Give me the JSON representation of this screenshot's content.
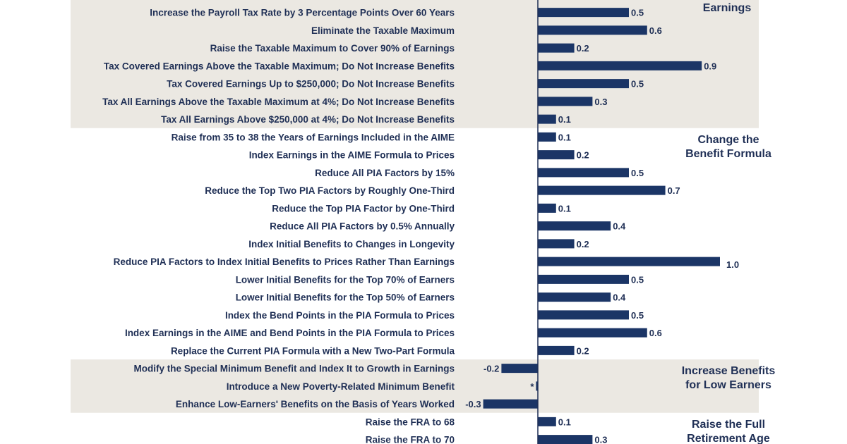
{
  "chart_data": {
    "type": "bar",
    "orientation": "horizontal",
    "groups": [
      {
        "name": [
          "Earnings"
        ],
        "shaded": true,
        "items": [
          {
            "label": "Increase the Payroll Tax Rate by 3 Percentage Points Over 60 Years",
            "value": 0.5,
            "display": "0.5"
          },
          {
            "label": "Eliminate the Taxable Maximum",
            "value": 0.6,
            "display": "0.6"
          },
          {
            "label": "Raise the Taxable Maximum to Cover 90% of Earnings",
            "value": 0.2,
            "display": "0.2"
          },
          {
            "label": "Tax Covered Earnings Above the Taxable Maximum; Do Not Increase Benefits",
            "value": 0.9,
            "display": "0.9"
          },
          {
            "label": "Tax Covered Earnings Up to $250,000; Do Not Increase Benefits",
            "value": 0.5,
            "display": "0.5"
          },
          {
            "label": "Tax All Earnings Above the Taxable Maximum at 4%; Do Not Increase Benefits",
            "value": 0.3,
            "display": "0.3"
          },
          {
            "label": "Tax All Earnings Above $250,000 at 4%; Do Not Increase Benefits",
            "value": 0.1,
            "display": "0.1"
          }
        ]
      },
      {
        "name": [
          "Change the",
          "Benefit Formula"
        ],
        "shaded": false,
        "items": [
          {
            "label": "Raise from 35 to 38 the Years of Earnings Included in the AIME",
            "value": 0.1,
            "display": "0.1"
          },
          {
            "label": "Index Earnings in the AIME Formula to Prices",
            "value": 0.2,
            "display": "0.2"
          },
          {
            "label": "Reduce All PIA Factors by 15%",
            "value": 0.5,
            "display": "0.5"
          },
          {
            "label": "Reduce the Top Two PIA Factors by Roughly One-Third",
            "value": 0.7,
            "display": "0.7"
          },
          {
            "label": "Reduce the Top PIA Factor by One-Third",
            "value": 0.1,
            "display": "0.1"
          },
          {
            "label": "Reduce All PIA Factors by 0.5% Annually",
            "value": 0.4,
            "display": "0.4"
          },
          {
            "label": "Index Initial Benefits to Changes in Longevity",
            "value": 0.2,
            "display": "0.2"
          },
          {
            "label": "Reduce PIA Factors to Index Initial Benefits to Prices Rather Than Earnings",
            "value": 1.0,
            "display": "1.0"
          },
          {
            "label": "Lower Initial Benefits for the Top 70% of Earners",
            "value": 0.5,
            "display": "0.5"
          },
          {
            "label": "Lower Initial Benefits for the Top 50% of Earners",
            "value": 0.4,
            "display": "0.4"
          },
          {
            "label": "Index the Bend Points in the PIA Formula to Prices",
            "value": 0.5,
            "display": "0.5"
          },
          {
            "label": "Index Earnings in the AIME and Bend Points in the PIA Formula to Prices",
            "value": 0.6,
            "display": "0.6"
          },
          {
            "label": "Replace the Current PIA Formula with a New Two-Part Formula",
            "value": 0.2,
            "display": "0.2"
          }
        ]
      },
      {
        "name": [
          "Increase Benefits",
          "for Low Earners"
        ],
        "shaded": true,
        "items": [
          {
            "label": "Modify the Special Minimum Benefit and Index It to Growth in Earnings",
            "value": -0.2,
            "display": "-0.2"
          },
          {
            "label": "Introduce a New Poverty-Related Minimum Benefit",
            "value": -0.01,
            "display": "*"
          },
          {
            "label": "Enhance Low-Earners' Benefits on the Basis of Years Worked",
            "value": -0.3,
            "display": "-0.3"
          }
        ]
      },
      {
        "name": [
          "Raise the Full",
          "Retirement Age"
        ],
        "shaded": false,
        "items": [
          {
            "label": "Raise the FRA to 68",
            "value": 0.1,
            "display": "0.1"
          },
          {
            "label": "Raise the FRA to 70",
            "value": 0.3,
            "display": "0.3"
          }
        ]
      }
    ],
    "xlim": [
      -0.3,
      1.0
    ],
    "colors": {
      "bar": "#1b3566",
      "text": "#1f2f55",
      "shade": "#ebe8e2",
      "axis": "#1f2f55"
    }
  }
}
